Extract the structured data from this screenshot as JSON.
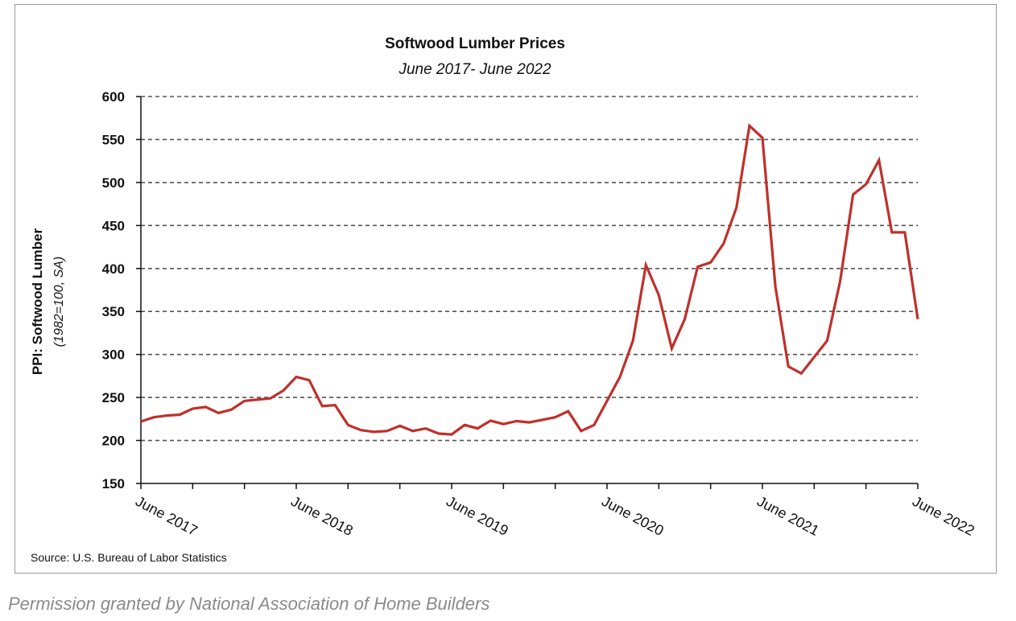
{
  "chart_data": {
    "type": "line",
    "title": "Softwood Lumber Prices",
    "subtitle": "June 2017- June 2022",
    "ylabel": "PPI: Softwood Lumber",
    "ylabel_sub": "(1982=100, SA)",
    "xlabel": "",
    "ylim": [
      150,
      600
    ],
    "yticks": [
      "150",
      "200",
      "250",
      "300",
      "350",
      "400",
      "450",
      "500",
      "550",
      "600"
    ],
    "x_start": "June 2017",
    "x_end": "June 2022",
    "x_tick_labels": [
      "June 2017",
      "June 2018",
      "June 2019",
      "June 2020",
      "June 2021",
      "June 2022"
    ],
    "grid": "horizontal dashed",
    "series": [
      {
        "name": "PPI: Softwood Lumber",
        "color": "#c0302a",
        "values": [
          222,
          227,
          229,
          230,
          237,
          239,
          232,
          236,
          246,
          247.5,
          249,
          258,
          274,
          270,
          240,
          241,
          218,
          212,
          210,
          211,
          217,
          211,
          214,
          208,
          207,
          218,
          214,
          223,
          219,
          222.5,
          221,
          224,
          227,
          234,
          211,
          218,
          246,
          274,
          316,
          404,
          369,
          307,
          341,
          402,
          407,
          429,
          471,
          566,
          552,
          379,
          286,
          278,
          297,
          316,
          385,
          486,
          498,
          526,
          442,
          442,
          341
        ]
      }
    ],
    "source": "Source: U.S. Bureau of Labor Statistics"
  },
  "caption": "Permission granted by National Association of Home Builders"
}
